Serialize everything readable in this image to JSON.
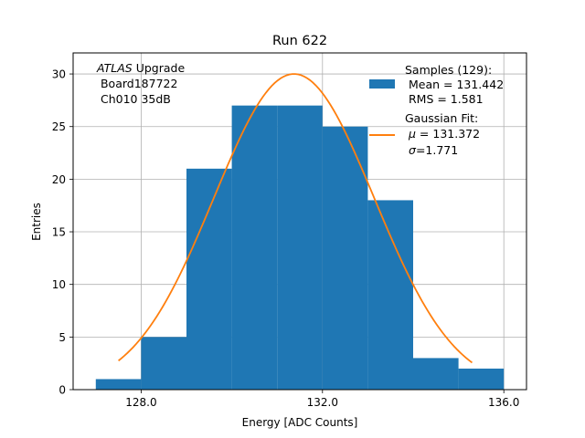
{
  "chart_data": {
    "type": "bar",
    "title": "Run 622",
    "xlabel": "Energy [ADC Counts]",
    "ylabel": "Entries",
    "xlim": [
      126.5,
      136.5
    ],
    "ylim": [
      0,
      32
    ],
    "grid": true,
    "xticks": [
      128.0,
      132.0,
      136.0
    ],
    "xtick_labels": [
      "128.0",
      "132.0",
      "136.0"
    ],
    "yticks": [
      0,
      5,
      10,
      15,
      20,
      25,
      30
    ],
    "ytick_labels": [
      "0",
      "5",
      "10",
      "15",
      "20",
      "25",
      "30"
    ],
    "histogram": {
      "name": "Samples",
      "color": "#1f77b4",
      "bin_edges": [
        127,
        128,
        129,
        130,
        131,
        132,
        133,
        134,
        135,
        136
      ],
      "counts": [
        1,
        5,
        21,
        27,
        27,
        25,
        18,
        3,
        2
      ]
    },
    "fit": {
      "name": "Gaussian Fit",
      "color": "#ff7f0e",
      "amplitude": 30.0,
      "mu": 131.372,
      "sigma": 1.771,
      "x_range": [
        127.5,
        135.3
      ]
    },
    "annotation": {
      "italic": "ATLAS",
      "rest": " Upgrade",
      "line2": " Board187722",
      "line3": " Ch010 35dB"
    },
    "legend": {
      "position": "top-right",
      "samples_line1": "Samples (129):",
      "samples_line2": " Mean = 131.442",
      "samples_line3": " RMS = 1.581",
      "fit_line1": "Gaussian Fit:",
      "fit_mu_symbol": "μ",
      "fit_mu_value": " = 131.372",
      "fit_sigma_symbol": "σ",
      "fit_sigma_value": "=1.771"
    }
  }
}
